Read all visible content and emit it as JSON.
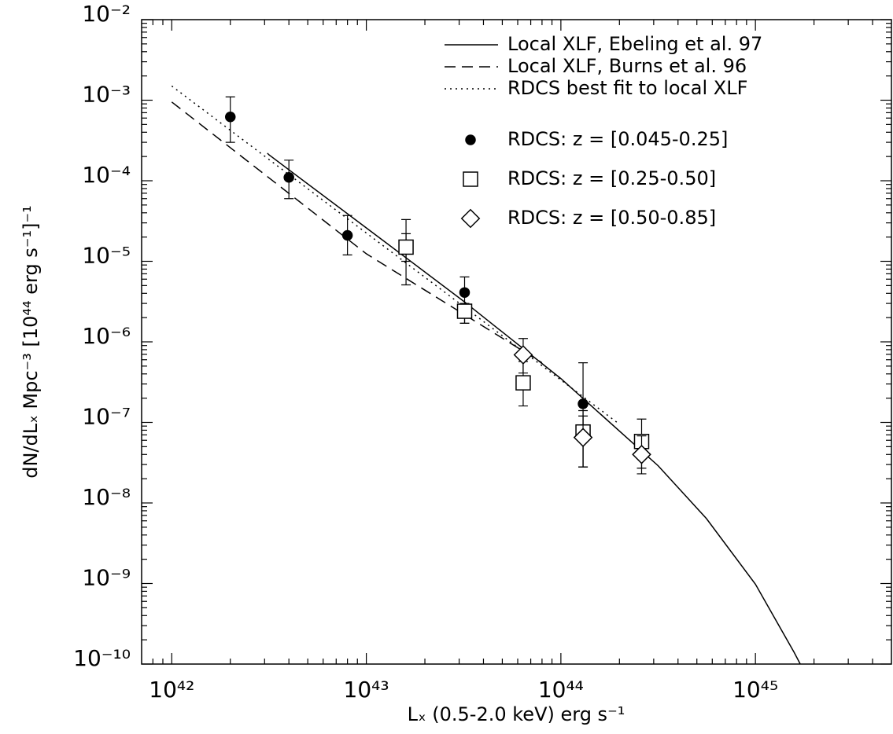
{
  "chart_data": {
    "type": "scatter",
    "xlabel": "Lₓ (0.5-2.0 keV) erg s⁻¹",
    "ylabel": "dN/dLₓ Mpc⁻³ [10⁴⁴ erg s⁻¹]⁻¹",
    "log_x": true,
    "log_y": true,
    "legend": "upper right",
    "xlim": [
      7e+41,
      5e+45
    ],
    "ylim": [
      1e-10,
      0.01
    ],
    "xticks": [
      {
        "value": 1e+42,
        "label": "10⁴²"
      },
      {
        "value": 1e+43,
        "label": "10⁴³"
      },
      {
        "value": 1e+44,
        "label": "10⁴⁴"
      },
      {
        "value": 1e+45,
        "label": "10⁴⁵"
      }
    ],
    "yticks": [
      {
        "value": 1e-10,
        "label": "10⁻¹⁰"
      },
      {
        "value": 1e-09,
        "label": "10⁻⁹"
      },
      {
        "value": 1e-08,
        "label": "10⁻⁸"
      },
      {
        "value": 1e-07,
        "label": "10⁻⁷"
      },
      {
        "value": 1e-06,
        "label": "10⁻⁶"
      },
      {
        "value": 1e-05,
        "label": "10⁻⁵"
      },
      {
        "value": 0.0001,
        "label": "10⁻⁴"
      },
      {
        "value": 0.001,
        "label": "10⁻³"
      },
      {
        "value": 0.01,
        "label": "10⁻²"
      }
    ],
    "series": [
      {
        "name": "Local XLF, Ebeling et al. 97",
        "style": "solid",
        "color": "#000",
        "x": [
          3.1e+42,
          3.16e+42,
          1e+43,
          3.16e+43,
          1e+44,
          3.16e+44,
          5.6e+44,
          1e+45,
          1.58e+45,
          1.7e+45
        ],
        "values": [
          0.00022,
          0.00021,
          2.6e-05,
          3.2e-06,
          3.5e-07,
          2.9e-08,
          6.4e-09,
          9.8e-10,
          1.4e-10,
          1e-10
        ]
      },
      {
        "name": "Local XLF, Burns et al. 96",
        "style": "dashed",
        "color": "#000",
        "x": [
          1e+42,
          1e+43,
          8e+43
        ],
        "values": [
          0.00095,
          1.24e-05,
          5.5e-07
        ]
      },
      {
        "name": "RDCS best fit to local XLF",
        "style": "dotted",
        "color": "#000",
        "x": [
          1e+42,
          2e+44
        ],
        "values": [
          0.0015,
          9.5e-08
        ]
      },
      {
        "name": "RDCS: z = [0.045-0.25]",
        "marker": "circle",
        "color": "#000",
        "x": [
          2e+42,
          4e+42,
          8e+42,
          1.6e+43,
          3.2e+43,
          1.3e+44
        ],
        "values": [
          0.00062,
          0.00011,
          2.1e-05,
          1.6e-05,
          4.1e-06,
          1.7e-07
        ],
        "lower": [
          0.0003,
          6e-05,
          1.2e-05,
          5.1e-06,
          1.7e-06,
          2.8e-08
        ],
        "upper": [
          0.0011,
          0.00018,
          3.7e-05,
          3.3e-05,
          6.4e-06,
          5.5e-07
        ]
      },
      {
        "name": "RDCS: z = [0.25-0.50]",
        "marker": "square",
        "color": "#000",
        "x": [
          1.6e+43,
          3.2e+43,
          6.4e+43,
          1.3e+44,
          2.6e+44
        ],
        "values": [
          1.5e-05,
          2.4e-06,
          3.1e-07,
          7.6e-08,
          5.8e-08
        ],
        "lower": [
          1e-05,
          1.7e-06,
          1.6e-07,
          2.8e-08,
          2.7e-08
        ],
        "upper": [
          2.2e-05,
          3e-06,
          5.7e-07,
          1.4e-07,
          1.1e-07
        ]
      },
      {
        "name": "RDCS: z = [0.50-0.85]",
        "marker": "diamond",
        "color": "#000",
        "x": [
          6.4e+43,
          1.3e+44,
          2.6e+44
        ],
        "values": [
          6.9e-07,
          6.5e-08,
          4e-08
        ],
        "lower": [
          4.1e-07,
          2.8e-08,
          2.3e-08
        ],
        "upper": [
          1.1e-06,
          1.2e-07,
          6.8e-08
        ]
      }
    ]
  }
}
